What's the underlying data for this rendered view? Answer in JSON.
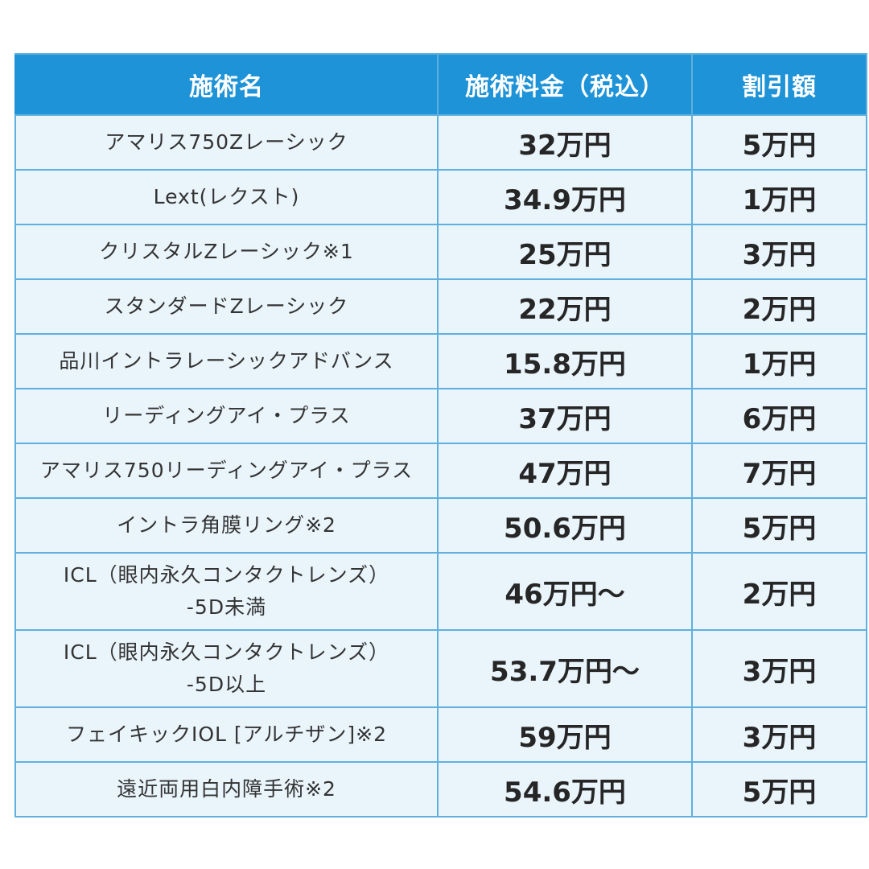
{
  "table": {
    "headers": {
      "name": "施術名",
      "price": "施術料金（税込）",
      "discount": "割引額"
    },
    "rows": [
      {
        "name": [
          "アマリス750Zレーシック"
        ],
        "price": "32万円",
        "discount": "5万円"
      },
      {
        "name": [
          "Lext(レクスト)"
        ],
        "price": "34.9万円",
        "discount": "1万円"
      },
      {
        "name": [
          "クリスタルZレーシック※1"
        ],
        "price": "25万円",
        "discount": "3万円"
      },
      {
        "name": [
          "スタンダードZレーシック"
        ],
        "price": "22万円",
        "discount": "2万円"
      },
      {
        "name": [
          "品川イントラレーシックアドバンス"
        ],
        "price": "15.8万円",
        "discount": "1万円"
      },
      {
        "name": [
          "リーディングアイ・プラス"
        ],
        "price": "37万円",
        "discount": "6万円"
      },
      {
        "name": [
          "アマリス750リーディングアイ・プラス"
        ],
        "price": "47万円",
        "discount": "7万円"
      },
      {
        "name": [
          "イントラ角膜リング※2"
        ],
        "price": "50.6万円",
        "discount": "5万円"
      },
      {
        "name": [
          "ICL（眼内永久コンタクトレンズ）",
          "-5D未満"
        ],
        "price": "46万円〜",
        "discount": "2万円"
      },
      {
        "name": [
          "ICL（眼内永久コンタクトレンズ）",
          "-5D以上"
        ],
        "price": "53.7万円〜",
        "discount": "3万円"
      },
      {
        "name": [
          "フェイキックIOL [アルチザン]※2"
        ],
        "price": "59万円",
        "discount": "3万円"
      },
      {
        "name": [
          "遠近両用白内障手術※2"
        ],
        "price": "54.6万円",
        "discount": "5万円"
      }
    ]
  },
  "colors": {
    "header_bg": "#1f93d7",
    "cell_bg": "#e9f4fb",
    "border": "#5fb0de"
  }
}
